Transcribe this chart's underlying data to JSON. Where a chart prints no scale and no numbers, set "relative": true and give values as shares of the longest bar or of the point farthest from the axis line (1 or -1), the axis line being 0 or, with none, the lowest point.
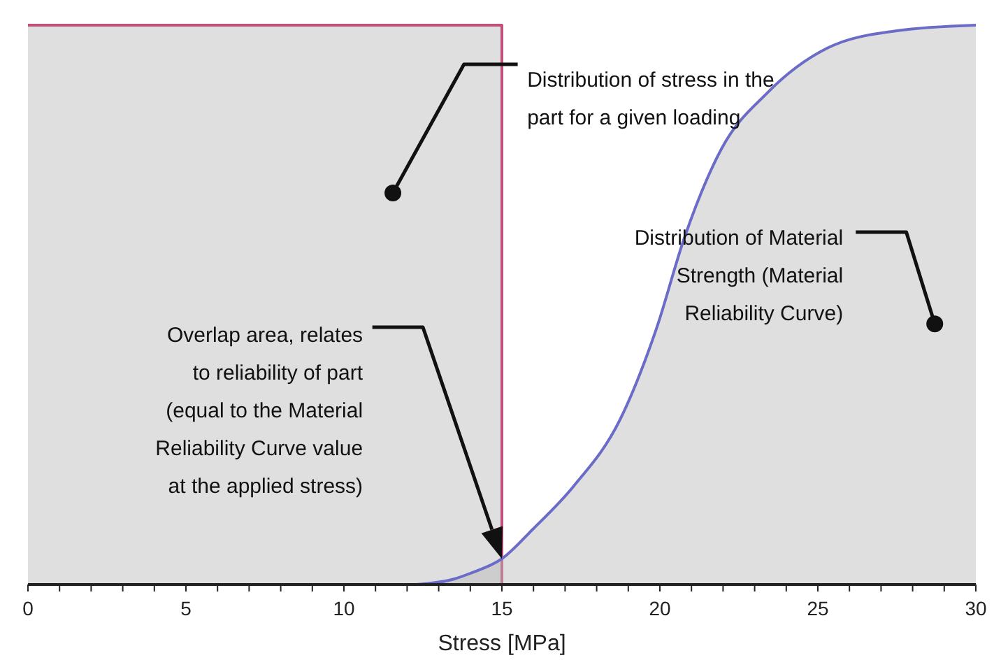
{
  "chart_data": {
    "type": "area",
    "relative": true,
    "xlabel": "Stress [MPa]",
    "xlim": [
      0,
      30
    ],
    "xticks": [
      0,
      {
        "value": 1,
        "label": null
      },
      {
        "value": 2,
        "label": null
      },
      {
        "value": 3,
        "label": null
      },
      {
        "value": 4,
        "label": null
      },
      5,
      {
        "value": 6,
        "label": null
      },
      {
        "value": 7,
        "label": null
      },
      {
        "value": 8,
        "label": null
      },
      {
        "value": 9,
        "label": null
      },
      10,
      {
        "value": 11,
        "label": null
      },
      {
        "value": 12,
        "label": null
      },
      {
        "value": 13,
        "label": null
      },
      {
        "value": 14,
        "label": null
      },
      15,
      {
        "value": 16,
        "label": null
      },
      {
        "value": 17,
        "label": null
      },
      {
        "value": 18,
        "label": null
      },
      {
        "value": 19,
        "label": null
      },
      20,
      {
        "value": 21,
        "label": null
      },
      {
        "value": 22,
        "label": null
      },
      {
        "value": 23,
        "label": null
      },
      {
        "value": 24,
        "label": null
      },
      25,
      {
        "value": 26,
        "label": null
      },
      {
        "value": 27,
        "label": null
      },
      {
        "value": 28,
        "label": null
      },
      {
        "value": 29,
        "label": null
      },
      30
    ],
    "series": [
      {
        "color": "#c0507a",
        "x": [
          0,
          15,
          15
        ],
        "values": [
          1,
          1,
          0
        ]
      },
      {
        "color": "#6b6bc8",
        "x": [
          12.3,
          13.5,
          14,
          15,
          16,
          17.26,
          18.75,
          19.9,
          20.77,
          21.96,
          23.4,
          25.3,
          27.5,
          30
        ],
        "values": [
          0,
          0.01,
          0.02,
          0.046,
          0.1,
          0.175,
          0.296,
          0.459,
          0.619,
          0.78,
          0.879,
          0.959,
          0.99,
          1
        ]
      }
    ],
    "annotations": [
      {
        "text": "Distribution of stress in the\npart for a given loading",
        "x": 11.55,
        "y": 0.7
      },
      {
        "text": "Distribution of Material\nStrength (Material\nReliability Curve)",
        "x": 28.7,
        "y": 0.466
      },
      "Overlap area, relates\nto reliability of part\n(equal to the Material\nReliability Curve value\nat the applied stress)"
    ]
  }
}
